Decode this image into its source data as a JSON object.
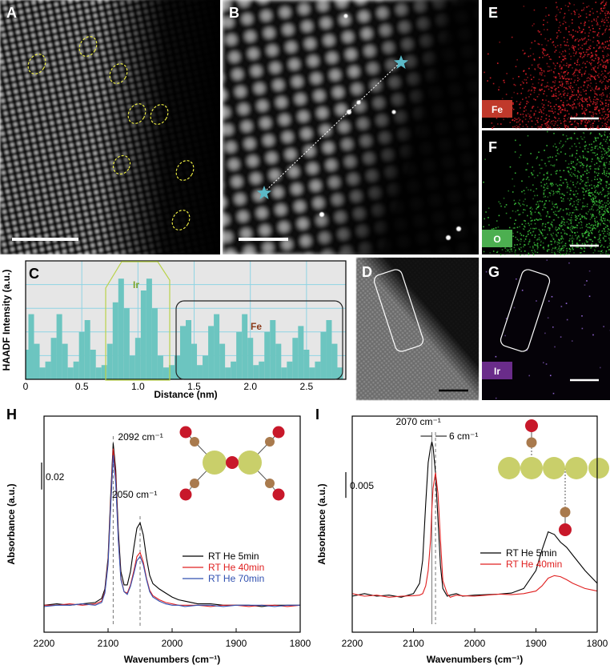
{
  "images": [
    {
      "label": "A"
    },
    {
      "label": "B"
    },
    {
      "label": "D"
    },
    {
      "label": "E",
      "element": "Fe"
    },
    {
      "label": "F",
      "element": "O"
    },
    {
      "label": "G",
      "element": "Ir"
    }
  ],
  "chart_data": [
    {
      "type": "bar",
      "panel_label": "C",
      "xlabel": "Distance (nm)",
      "ylabel": "HAADF Intensity (a.u.)",
      "color": "#6cc5c0",
      "grid": true,
      "x": [
        0,
        0.05,
        0.1,
        0.15,
        0.2,
        0.25,
        0.3,
        0.35,
        0.4,
        0.45,
        0.5,
        0.55,
        0.6,
        0.65,
        0.7,
        0.75,
        0.8,
        0.85,
        0.9,
        0.95,
        1,
        1.05,
        1.1,
        1.15,
        1.2,
        1.25,
        1.3,
        1.35,
        1.4,
        1.45,
        1.5,
        1.55,
        1.6,
        1.65,
        1.7,
        1.75,
        1.8,
        1.85,
        1.9,
        1.95,
        2,
        2.05,
        2.1,
        2.15,
        2.2,
        2.25,
        2.3,
        2.35,
        2.4,
        2.45,
        2.5,
        2.55,
        2.6,
        2.65,
        2.7,
        2.75,
        2.8
      ],
      "values": [
        0.25,
        0.55,
        0.3,
        0.1,
        0.15,
        0.35,
        0.55,
        0.3,
        0.1,
        0.15,
        0.4,
        0.5,
        0.25,
        0.1,
        0.12,
        0.3,
        0.65,
        0.85,
        0.6,
        0.2,
        0.35,
        0.75,
        0.85,
        0.6,
        0.2,
        0.1,
        0.12,
        0.2,
        0.45,
        0.5,
        0.3,
        0.12,
        0.2,
        0.45,
        0.55,
        0.3,
        0.1,
        0.15,
        0.4,
        0.55,
        0.35,
        0.12,
        0.15,
        0.4,
        0.5,
        0.3,
        0.1,
        0.15,
        0.35,
        0.45,
        0.25,
        0.1,
        0.15,
        0.4,
        0.5,
        0.3,
        0.1
      ],
      "xlim": [
        0,
        2.85
      ],
      "xticks": [
        0,
        0.5,
        {
          "value": 1,
          "label": "1.0"
        },
        1.5,
        {
          "value": 2,
          "label": "2.0"
        },
        2.5
      ],
      "ylim": [
        0,
        1
      ],
      "annotations": [
        {
          "text": "Ir"
        },
        {
          "text": "Fe"
        }
      ]
    },
    {
      "type": "line",
      "panel_label": "H",
      "xlabel": "Wavenumbers (cm⁻¹)",
      "ylabel": "Absorbance (a.u.)",
      "x": [
        2200,
        2180,
        2160,
        2140,
        2120,
        2110,
        2105,
        2100,
        2096,
        2092,
        2088,
        2084,
        2080,
        2075,
        2070,
        2065,
        2060,
        2055,
        2050,
        2045,
        2040,
        2035,
        2030,
        2020,
        2010,
        2000,
        1990,
        1980,
        1960,
        1940,
        1920,
        1900,
        1880,
        1860,
        1840,
        1820,
        1800
      ],
      "series": [
        {
          "name": "RT He 5min",
          "color": "#000000",
          "values": [
            0.02,
            0.021,
            0.02,
            0.021,
            0.022,
            0.025,
            0.032,
            0.055,
            0.1,
            0.14,
            0.12,
            0.075,
            0.045,
            0.035,
            0.035,
            0.045,
            0.062,
            0.077,
            0.081,
            0.072,
            0.055,
            0.042,
            0.036,
            0.032,
            0.029,
            0.026,
            0.024,
            0.023,
            0.021,
            0.021,
            0.02,
            0.02,
            0.02,
            0.019,
            0.02,
            0.02,
            0.02
          ]
        },
        {
          "name": "RT He 40min",
          "color": "#e02020",
          "values": [
            0.02,
            0.02,
            0.021,
            0.02,
            0.021,
            0.023,
            0.03,
            0.052,
            0.095,
            0.136,
            0.115,
            0.07,
            0.04,
            0.03,
            0.029,
            0.035,
            0.045,
            0.056,
            0.059,
            0.052,
            0.04,
            0.031,
            0.027,
            0.024,
            0.022,
            0.021,
            0.02,
            0.02,
            0.02,
            0.019,
            0.02,
            0.02,
            0.019,
            0.02,
            0.02,
            0.019,
            0.02
          ]
        },
        {
          "name": "RT He 70min",
          "color": "#3050b0",
          "values": [
            0.019,
            0.02,
            0.02,
            0.021,
            0.02,
            0.022,
            0.029,
            0.05,
            0.092,
            0.131,
            0.11,
            0.068,
            0.039,
            0.03,
            0.028,
            0.034,
            0.043,
            0.053,
            0.056,
            0.05,
            0.039,
            0.03,
            0.026,
            0.023,
            0.021,
            0.02,
            0.02,
            0.019,
            0.02,
            0.02,
            0.019,
            0.02,
            0.02,
            0.02,
            0.019,
            0.02,
            0.02
          ]
        }
      ],
      "xlim": [
        2200,
        1800
      ],
      "xticks": [
        2200,
        2100,
        2000,
        1900,
        1800
      ],
      "ylim": [
        0,
        0.16
      ],
      "scale_bar": 0.02,
      "annotations": [
        {
          "text": "2092 cm⁻¹",
          "x": 2092
        },
        {
          "text": "2050 cm⁻¹",
          "x": 2050
        }
      ]
    },
    {
      "type": "line",
      "panel_label": "I",
      "xlabel": "Wavenumbers (cm⁻¹)",
      "ylabel": "Absorbance (a.u.)",
      "x": [
        2200,
        2180,
        2160,
        2140,
        2120,
        2100,
        2090,
        2085,
        2080,
        2076,
        2072,
        2070,
        2068,
        2064,
        2060,
        2056,
        2052,
        2045,
        2040,
        2030,
        2020,
        2000,
        1980,
        1960,
        1940,
        1920,
        1900,
        1890,
        1880,
        1870,
        1860,
        1850,
        1840,
        1820,
        1800
      ],
      "series": [
        {
          "name": "RT He 5min",
          "color": "#000000",
          "values": [
            0.007,
            0.0075,
            0.007,
            0.0072,
            0.0068,
            0.0075,
            0.0095,
            0.014,
            0.025,
            0.033,
            0.036,
            0.037,
            0.036,
            0.031,
            0.022,
            0.013,
            0.0085,
            0.007,
            0.0072,
            0.0075,
            0.007,
            0.0072,
            0.0073,
            0.0074,
            0.0076,
            0.0085,
            0.012,
            0.016,
            0.0195,
            0.019,
            0.0175,
            0.0165,
            0.015,
            0.012,
            0.0095
          ]
        },
        {
          "name": "RT He 40min",
          "color": "#e02020",
          "values": [
            0.0075,
            0.007,
            0.0072,
            0.0068,
            0.007,
            0.0071,
            0.0072,
            0.0075,
            0.009,
            0.012,
            0.018,
            0.024,
            0.028,
            0.031,
            0.027,
            0.018,
            0.01,
            0.0075,
            0.0068,
            0.0072,
            0.0071,
            0.007,
            0.0072,
            0.0074,
            0.0073,
            0.0075,
            0.008,
            0.009,
            0.0105,
            0.011,
            0.0108,
            0.0102,
            0.0095,
            0.0085,
            0.008
          ]
        }
      ],
      "xlim": [
        2200,
        1800
      ],
      "xticks": [
        2200,
        2100,
        2000,
        1900,
        1800
      ],
      "ylim": [
        0,
        0.042
      ],
      "scale_bar": 0.005,
      "vlines": [
        2070,
        2064
      ],
      "annotations": [
        {
          "text": "2070 cm⁻¹"
        },
        {
          "text": "6 cm⁻¹"
        }
      ]
    }
  ]
}
